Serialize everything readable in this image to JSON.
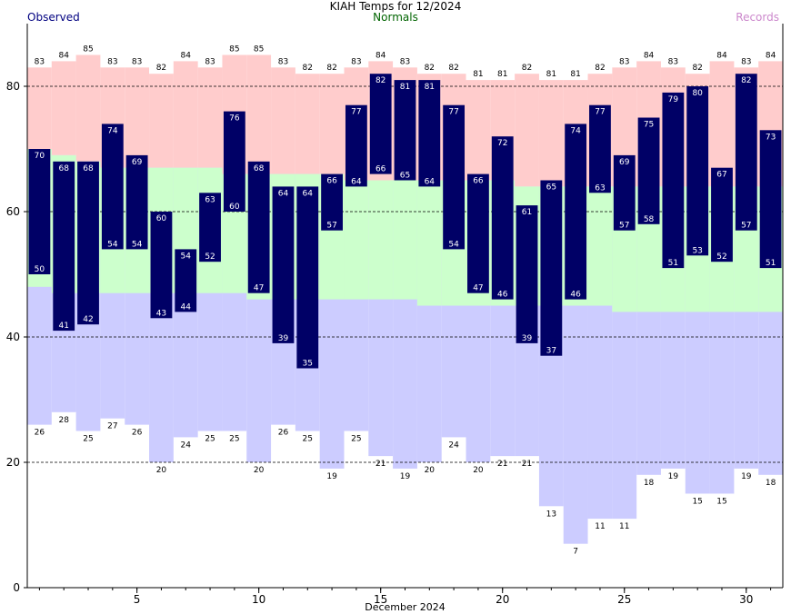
{
  "chart_data": {
    "type": "bar",
    "title": "KIAH Temps for 12/2024",
    "xlabel": "December 2024",
    "ylabel": "",
    "ylim": [
      0,
      90
    ],
    "xlim": [
      0.5,
      31.5
    ],
    "y_ticks": [
      0,
      20,
      40,
      60,
      80
    ],
    "x_ticks": [
      5,
      10,
      15,
      20,
      25,
      30
    ],
    "grid": "horizontal dashed at 20, 40, 60, 80",
    "legend": [
      "Observed",
      "Normals",
      "Records"
    ],
    "legend_placement": "top",
    "days": [
      1,
      2,
      3,
      4,
      5,
      6,
      7,
      8,
      9,
      10,
      11,
      12,
      13,
      14,
      15,
      16,
      17,
      18,
      19,
      20,
      21,
      22,
      23,
      24,
      25,
      26,
      27,
      28,
      29,
      30,
      31
    ],
    "series": [
      {
        "name": "Observed",
        "kind": "range-bars",
        "high": [
          70,
          68,
          68,
          74,
          69,
          60,
          54,
          63,
          76,
          68,
          64,
          64,
          66,
          77,
          82,
          81,
          81,
          77,
          66,
          72,
          61,
          65,
          74,
          77,
          69,
          75,
          79,
          80,
          67,
          82,
          73
        ],
        "low": [
          50,
          41,
          42,
          54,
          54,
          43,
          44,
          52,
          60,
          47,
          39,
          35,
          57,
          64,
          66,
          65,
          64,
          54,
          47,
          46,
          39,
          37,
          46,
          63,
          57,
          58,
          51,
          53,
          52,
          57,
          51
        ]
      },
      {
        "name": "Normals",
        "kind": "band",
        "high": [
          70,
          69,
          68,
          67,
          67,
          67,
          67,
          67,
          66,
          66,
          66,
          66,
          66,
          65,
          65,
          65,
          65,
          65,
          65,
          65,
          64,
          64,
          64,
          64,
          64,
          64,
          64,
          64,
          64,
          64,
          64
        ],
        "low": [
          48,
          47,
          47,
          47,
          47,
          47,
          47,
          47,
          47,
          46,
          46,
          46,
          46,
          46,
          46,
          46,
          45,
          45,
          45,
          45,
          45,
          45,
          45,
          45,
          44,
          44,
          44,
          44,
          44,
          44,
          44
        ]
      },
      {
        "name": "Records",
        "kind": "envelope",
        "high": [
          83,
          84,
          85,
          83,
          83,
          82,
          84,
          83,
          85,
          85,
          83,
          82,
          82,
          83,
          84,
          83,
          82,
          82,
          81,
          81,
          82,
          81,
          81,
          82,
          83,
          84,
          83,
          82,
          84,
          83,
          84
        ],
        "low": [
          26,
          28,
          25,
          27,
          26,
          20,
          24,
          25,
          25,
          20,
          26,
          25,
          19,
          25,
          21,
          19,
          20,
          24,
          20,
          21,
          21,
          13,
          7,
          11,
          11,
          18,
          19,
          15,
          15,
          19,
          18
        ]
      }
    ],
    "colors": {
      "observed_bar": "#000066",
      "observed_label": "#000080",
      "normals_band": "#ccffcc",
      "normals_label": "#006400",
      "records_high": "#ffcccc",
      "records_low": "#ccccff",
      "records_label": "#cc88cc",
      "grid": "#000000"
    }
  }
}
